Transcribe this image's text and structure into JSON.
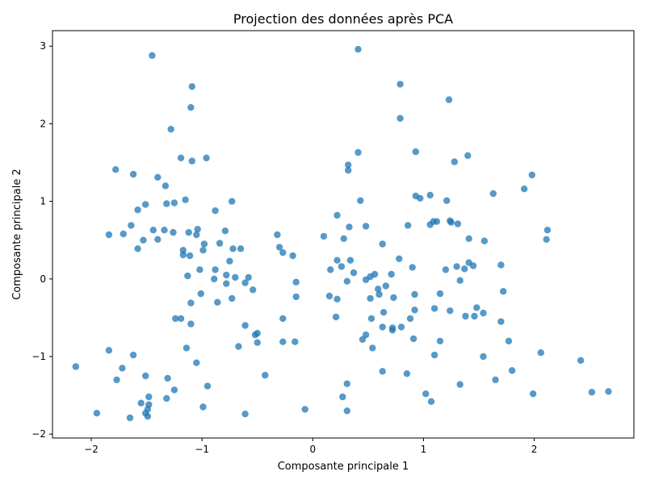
{
  "chart_data": {
    "type": "scatter",
    "title": "Projection des données après PCA",
    "xlabel": "Composante principale 1",
    "ylabel": "Composante principale 2",
    "xlim": [
      -2.35,
      2.9
    ],
    "ylim": [
      -2.05,
      3.2
    ],
    "xticks": [
      -2,
      -1,
      0,
      1,
      2
    ],
    "yticks": [
      -2,
      -1,
      0,
      1,
      2,
      3
    ],
    "xtick_labels": [
      "−2",
      "−1",
      "0",
      "1",
      "2"
    ],
    "ytick_labels": [
      "−2",
      "−1",
      "0",
      "1",
      "2",
      "3"
    ],
    "grid": false,
    "color": "#1f77b4",
    "points": [
      [
        -1.45,
        2.88
      ],
      [
        -1.09,
        2.48
      ],
      [
        -1.1,
        2.21
      ],
      [
        -1.28,
        1.93
      ],
      [
        -1.19,
        1.56
      ],
      [
        -0.96,
        1.56
      ],
      [
        -1.09,
        1.52
      ],
      [
        -1.78,
        1.41
      ],
      [
        -1.62,
        1.35
      ],
      [
        -1.4,
        1.31
      ],
      [
        -1.33,
        1.2
      ],
      [
        -1.15,
        1.02
      ],
      [
        -1.25,
        0.98
      ],
      [
        -1.32,
        0.97
      ],
      [
        -1.51,
        0.96
      ],
      [
        -0.73,
        1.0
      ],
      [
        -1.58,
        0.89
      ],
      [
        -0.88,
        0.88
      ],
      [
        -1.64,
        0.69
      ],
      [
        -1.44,
        0.63
      ],
      [
        -1.34,
        0.63
      ],
      [
        -1.26,
        0.6
      ],
      [
        -1.12,
        0.6
      ],
      [
        -1.04,
        0.64
      ],
      [
        -1.05,
        0.57
      ],
      [
        -0.79,
        0.62
      ],
      [
        -1.84,
        0.57
      ],
      [
        -1.71,
        0.58
      ],
      [
        -1.53,
        0.5
      ],
      [
        -1.4,
        0.51
      ],
      [
        -1.58,
        0.39
      ],
      [
        -1.17,
        0.37
      ],
      [
        -1.17,
        0.31
      ],
      [
        -1.11,
        0.3
      ],
      [
        -0.84,
        0.46
      ],
      [
        -0.98,
        0.45
      ],
      [
        -0.99,
        0.37
      ],
      [
        -0.72,
        0.39
      ],
      [
        -0.65,
        0.39
      ],
      [
        -0.75,
        0.23
      ],
      [
        -1.02,
        0.12
      ],
      [
        -0.88,
        0.12
      ],
      [
        -0.78,
        0.05
      ],
      [
        -0.7,
        0.02
      ],
      [
        -0.89,
        0.0
      ],
      [
        -0.78,
        -0.06
      ],
      [
        -0.58,
        0.02
      ],
      [
        -0.61,
        -0.05
      ],
      [
        -0.54,
        -0.14
      ],
      [
        -1.13,
        0.04
      ],
      [
        -1.01,
        -0.19
      ],
      [
        -0.73,
        -0.25
      ],
      [
        -0.86,
        -0.3
      ],
      [
        -1.1,
        -0.31
      ],
      [
        -1.24,
        -0.51
      ],
      [
        -1.19,
        -0.51
      ],
      [
        -1.1,
        -0.58
      ],
      [
        -0.61,
        -0.6
      ],
      [
        -0.52,
        -0.72
      ],
      [
        -0.5,
        -0.7
      ],
      [
        -0.5,
        -0.82
      ],
      [
        -0.67,
        -0.87
      ],
      [
        -1.14,
        -0.89
      ],
      [
        -1.84,
        -0.92
      ],
      [
        -1.62,
        -0.98
      ],
      [
        -1.05,
        -1.08
      ],
      [
        -2.14,
        -1.13
      ],
      [
        -1.72,
        -1.15
      ],
      [
        -1.51,
        -1.25
      ],
      [
        -1.77,
        -1.3
      ],
      [
        -1.31,
        -1.28
      ],
      [
        -0.43,
        -1.24
      ],
      [
        -0.95,
        -1.38
      ],
      [
        -1.25,
        -1.43
      ],
      [
        -1.48,
        -1.52
      ],
      [
        -1.32,
        -1.54
      ],
      [
        -1.55,
        -1.6
      ],
      [
        -1.48,
        -1.62
      ],
      [
        -1.49,
        -1.68
      ],
      [
        -0.99,
        -1.65
      ],
      [
        -1.51,
        -1.73
      ],
      [
        -1.49,
        -1.77
      ],
      [
        -1.65,
        -1.79
      ],
      [
        -1.95,
        -1.73
      ],
      [
        -0.61,
        -1.74
      ],
      [
        -0.07,
        -1.68
      ],
      [
        -0.32,
        0.57
      ],
      [
        -0.3,
        0.41
      ],
      [
        -0.27,
        0.34
      ],
      [
        -0.18,
        0.3
      ],
      [
        -0.15,
        -0.04
      ],
      [
        -0.15,
        -0.23
      ],
      [
        -0.27,
        -0.51
      ],
      [
        -0.27,
        -0.81
      ],
      [
        -0.16,
        -0.81
      ],
      [
        0.41,
        2.96
      ],
      [
        0.79,
        2.51
      ],
      [
        1.23,
        2.31
      ],
      [
        0.79,
        2.07
      ],
      [
        0.93,
        1.64
      ],
      [
        0.41,
        1.63
      ],
      [
        1.4,
        1.59
      ],
      [
        1.28,
        1.51
      ],
      [
        0.32,
        1.47
      ],
      [
        0.32,
        1.4
      ],
      [
        1.98,
        1.34
      ],
      [
        1.91,
        1.16
      ],
      [
        1.63,
        1.1
      ],
      [
        0.93,
        1.07
      ],
      [
        0.97,
        1.04
      ],
      [
        1.06,
        1.08
      ],
      [
        1.21,
        1.01
      ],
      [
        0.43,
        1.01
      ],
      [
        0.22,
        0.82
      ],
      [
        1.09,
        0.74
      ],
      [
        1.12,
        0.74
      ],
      [
        1.24,
        0.75
      ],
      [
        1.25,
        0.73
      ],
      [
        1.31,
        0.71
      ],
      [
        1.06,
        0.7
      ],
      [
        0.86,
        0.69
      ],
      [
        0.33,
        0.67
      ],
      [
        0.48,
        0.68
      ],
      [
        2.12,
        0.63
      ],
      [
        0.1,
        0.55
      ],
      [
        0.28,
        0.52
      ],
      [
        1.41,
        0.52
      ],
      [
        1.55,
        0.49
      ],
      [
        2.11,
        0.51
      ],
      [
        0.63,
        0.45
      ],
      [
        0.22,
        0.24
      ],
      [
        0.34,
        0.24
      ],
      [
        0.78,
        0.26
      ],
      [
        0.26,
        0.16
      ],
      [
        0.16,
        0.12
      ],
      [
        0.9,
        0.15
      ],
      [
        1.2,
        0.12
      ],
      [
        1.3,
        0.16
      ],
      [
        1.37,
        0.13
      ],
      [
        1.41,
        0.21
      ],
      [
        1.45,
        0.17
      ],
      [
        1.7,
        0.18
      ],
      [
        0.37,
        0.08
      ],
      [
        0.56,
        0.06
      ],
      [
        0.52,
        0.03
      ],
      [
        0.71,
        0.06
      ],
      [
        0.48,
        -0.01
      ],
      [
        0.31,
        -0.03
      ],
      [
        1.33,
        -0.02
      ],
      [
        0.66,
        -0.09
      ],
      [
        0.59,
        -0.13
      ],
      [
        0.6,
        -0.2
      ],
      [
        0.92,
        -0.2
      ],
      [
        1.15,
        -0.19
      ],
      [
        1.72,
        -0.16
      ],
      [
        0.15,
        -0.22
      ],
      [
        0.22,
        -0.26
      ],
      [
        0.52,
        -0.25
      ],
      [
        0.73,
        -0.24
      ],
      [
        0.64,
        -0.43
      ],
      [
        0.92,
        -0.4
      ],
      [
        1.1,
        -0.38
      ],
      [
        1.24,
        -0.41
      ],
      [
        1.38,
        -0.48
      ],
      [
        1.46,
        -0.48
      ],
      [
        1.48,
        -0.37
      ],
      [
        1.54,
        -0.44
      ],
      [
        1.7,
        -0.55
      ],
      [
        0.21,
        -0.49
      ],
      [
        0.53,
        -0.51
      ],
      [
        0.88,
        -0.51
      ],
      [
        0.63,
        -0.62
      ],
      [
        0.72,
        -0.63
      ],
      [
        0.72,
        -0.66
      ],
      [
        0.8,
        -0.62
      ],
      [
        0.48,
        -0.72
      ],
      [
        0.45,
        -0.78
      ],
      [
        0.91,
        -0.77
      ],
      [
        1.15,
        -0.8
      ],
      [
        1.77,
        -0.8
      ],
      [
        0.54,
        -0.89
      ],
      [
        1.1,
        -0.98
      ],
      [
        1.54,
        -1.0
      ],
      [
        2.06,
        -0.95
      ],
      [
        2.42,
        -1.05
      ],
      [
        0.63,
        -1.19
      ],
      [
        0.85,
        -1.22
      ],
      [
        1.65,
        -1.3
      ],
      [
        1.8,
        -1.18
      ],
      [
        0.31,
        -1.35
      ],
      [
        1.33,
        -1.36
      ],
      [
        0.27,
        -1.52
      ],
      [
        1.02,
        -1.48
      ],
      [
        1.07,
        -1.58
      ],
      [
        1.99,
        -1.48
      ],
      [
        2.52,
        -1.46
      ],
      [
        2.67,
        -1.45
      ],
      [
        0.31,
        -1.7
      ]
    ]
  }
}
